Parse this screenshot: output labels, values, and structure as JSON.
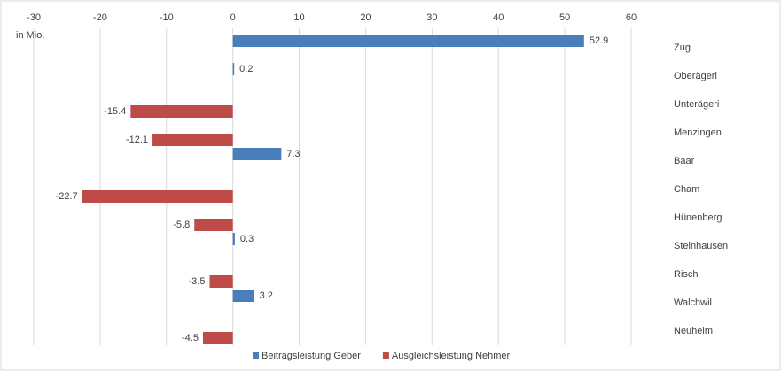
{
  "chart_data": {
    "type": "bar",
    "orientation": "horizontal",
    "axis_note": "in Mio.",
    "categories": [
      "Zug",
      "Oberägeri",
      "Unterägeri",
      "Menzingen",
      "Baar",
      "Cham",
      "Hünenberg",
      "Steinhausen",
      "Risch",
      "Walchwil",
      "Neuheim"
    ],
    "series": [
      {
        "name": "Beitragsleistung Geber",
        "color": "#4a7ebb",
        "values": [
          52.9,
          0.2,
          null,
          null,
          7.3,
          null,
          null,
          0.3,
          null,
          3.2,
          null
        ]
      },
      {
        "name": "Ausgleichsleistung Nehmer",
        "color": "#be4b48",
        "values": [
          null,
          null,
          -15.4,
          -12.1,
          null,
          -22.7,
          -5.8,
          null,
          -3.5,
          null,
          -4.5
        ]
      }
    ],
    "xlim": [
      -30,
      60
    ],
    "xticks": [
      -30,
      -20,
      -10,
      0,
      10,
      20,
      30,
      40,
      50,
      60
    ],
    "grid": true,
    "legend": "bottom"
  }
}
